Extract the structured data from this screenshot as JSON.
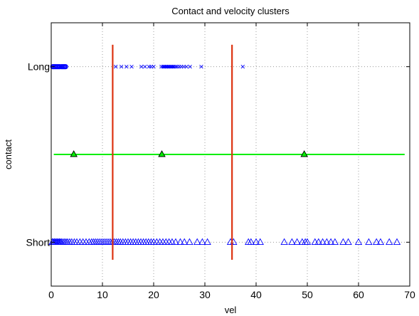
{
  "chart_data": {
    "type": "scatter",
    "title": "Contact and velocity clusters",
    "xlabel": "vel",
    "ylabel": "contact",
    "xlim": [
      0,
      70
    ],
    "xticks": [
      0,
      10,
      20,
      30,
      40,
      50,
      60,
      70
    ],
    "ylim": [
      0,
      3
    ],
    "yticks": [
      {
        "value": 2.5,
        "label": "Long"
      },
      {
        "value": 0.5,
        "label": "Short"
      }
    ],
    "grid": true,
    "series": [
      {
        "marker": "o",
        "color": "#0000ff",
        "y": 2.5,
        "x": [
          0.3,
          0.5,
          0.7,
          0.9,
          1.1,
          1.3,
          1.5,
          1.7,
          2.0,
          2.2,
          2.4,
          2.6,
          2.8
        ]
      },
      {
        "marker": "x",
        "color": "#0000ff",
        "y": 2.5,
        "x": [
          12.6,
          13.7,
          14.7,
          15.7,
          17.6,
          18.3,
          19.1,
          19.5,
          20.0,
          21.5,
          21.8,
          22.0,
          22.2,
          22.4,
          22.6,
          22.8,
          23.0,
          23.2,
          23.4,
          23.6,
          23.8,
          24.0,
          24.3,
          24.6,
          25.0,
          25.4,
          25.9,
          26.4,
          27.1,
          29.3,
          37.4
        ]
      },
      {
        "marker": "triangle",
        "color": "#0000ff",
        "y": 0.5,
        "x": [
          0.2,
          0.4,
          0.6,
          0.8,
          1.0,
          1.2,
          1.4,
          1.6,
          1.8,
          2.0,
          2.3,
          2.6,
          2.9,
          3.2,
          3.6,
          4.0,
          4.5,
          5.0,
          5.6,
          6.2,
          6.8,
          7.4,
          7.9,
          8.3,
          8.7,
          9.1,
          9.5,
          9.9,
          10.3,
          10.7,
          11.1,
          11.5,
          11.9,
          12.3,
          12.7,
          13.1,
          13.5,
          14.0,
          14.5,
          15.0,
          15.5,
          16.0,
          16.5,
          17.0,
          17.5,
          18.0,
          18.5,
          19.0,
          19.5,
          20.0,
          20.6,
          21.2,
          21.8,
          22.4,
          23.0,
          23.6,
          24.3,
          25.2,
          26.0,
          27.0,
          28.5,
          29.5,
          30.5,
          35.0,
          35.6,
          38.5,
          39.0,
          40.0,
          40.8,
          45.5,
          47.0,
          48.0,
          49.0,
          49.6,
          50.0,
          51.5,
          52.2,
          53.0,
          53.8,
          54.6,
          55.4,
          57.0,
          58.0,
          60.0,
          62.0,
          63.5,
          64.3,
          66.0,
          67.5
        ]
      },
      {
        "marker": "triangle-line",
        "color": "#00ee00",
        "y": 1.5,
        "x": [
          0.5,
          69.0
        ],
        "markers_at": [
          4.4,
          21.6,
          49.4
        ]
      }
    ],
    "annotations": [
      {
        "type": "vline",
        "x": 12.0,
        "y_range": [
          0.3,
          2.75
        ],
        "color": "#dd3311"
      },
      {
        "type": "vline",
        "x": 35.3,
        "y_range": [
          0.3,
          2.75
        ],
        "color": "#dd3311"
      }
    ]
  }
}
